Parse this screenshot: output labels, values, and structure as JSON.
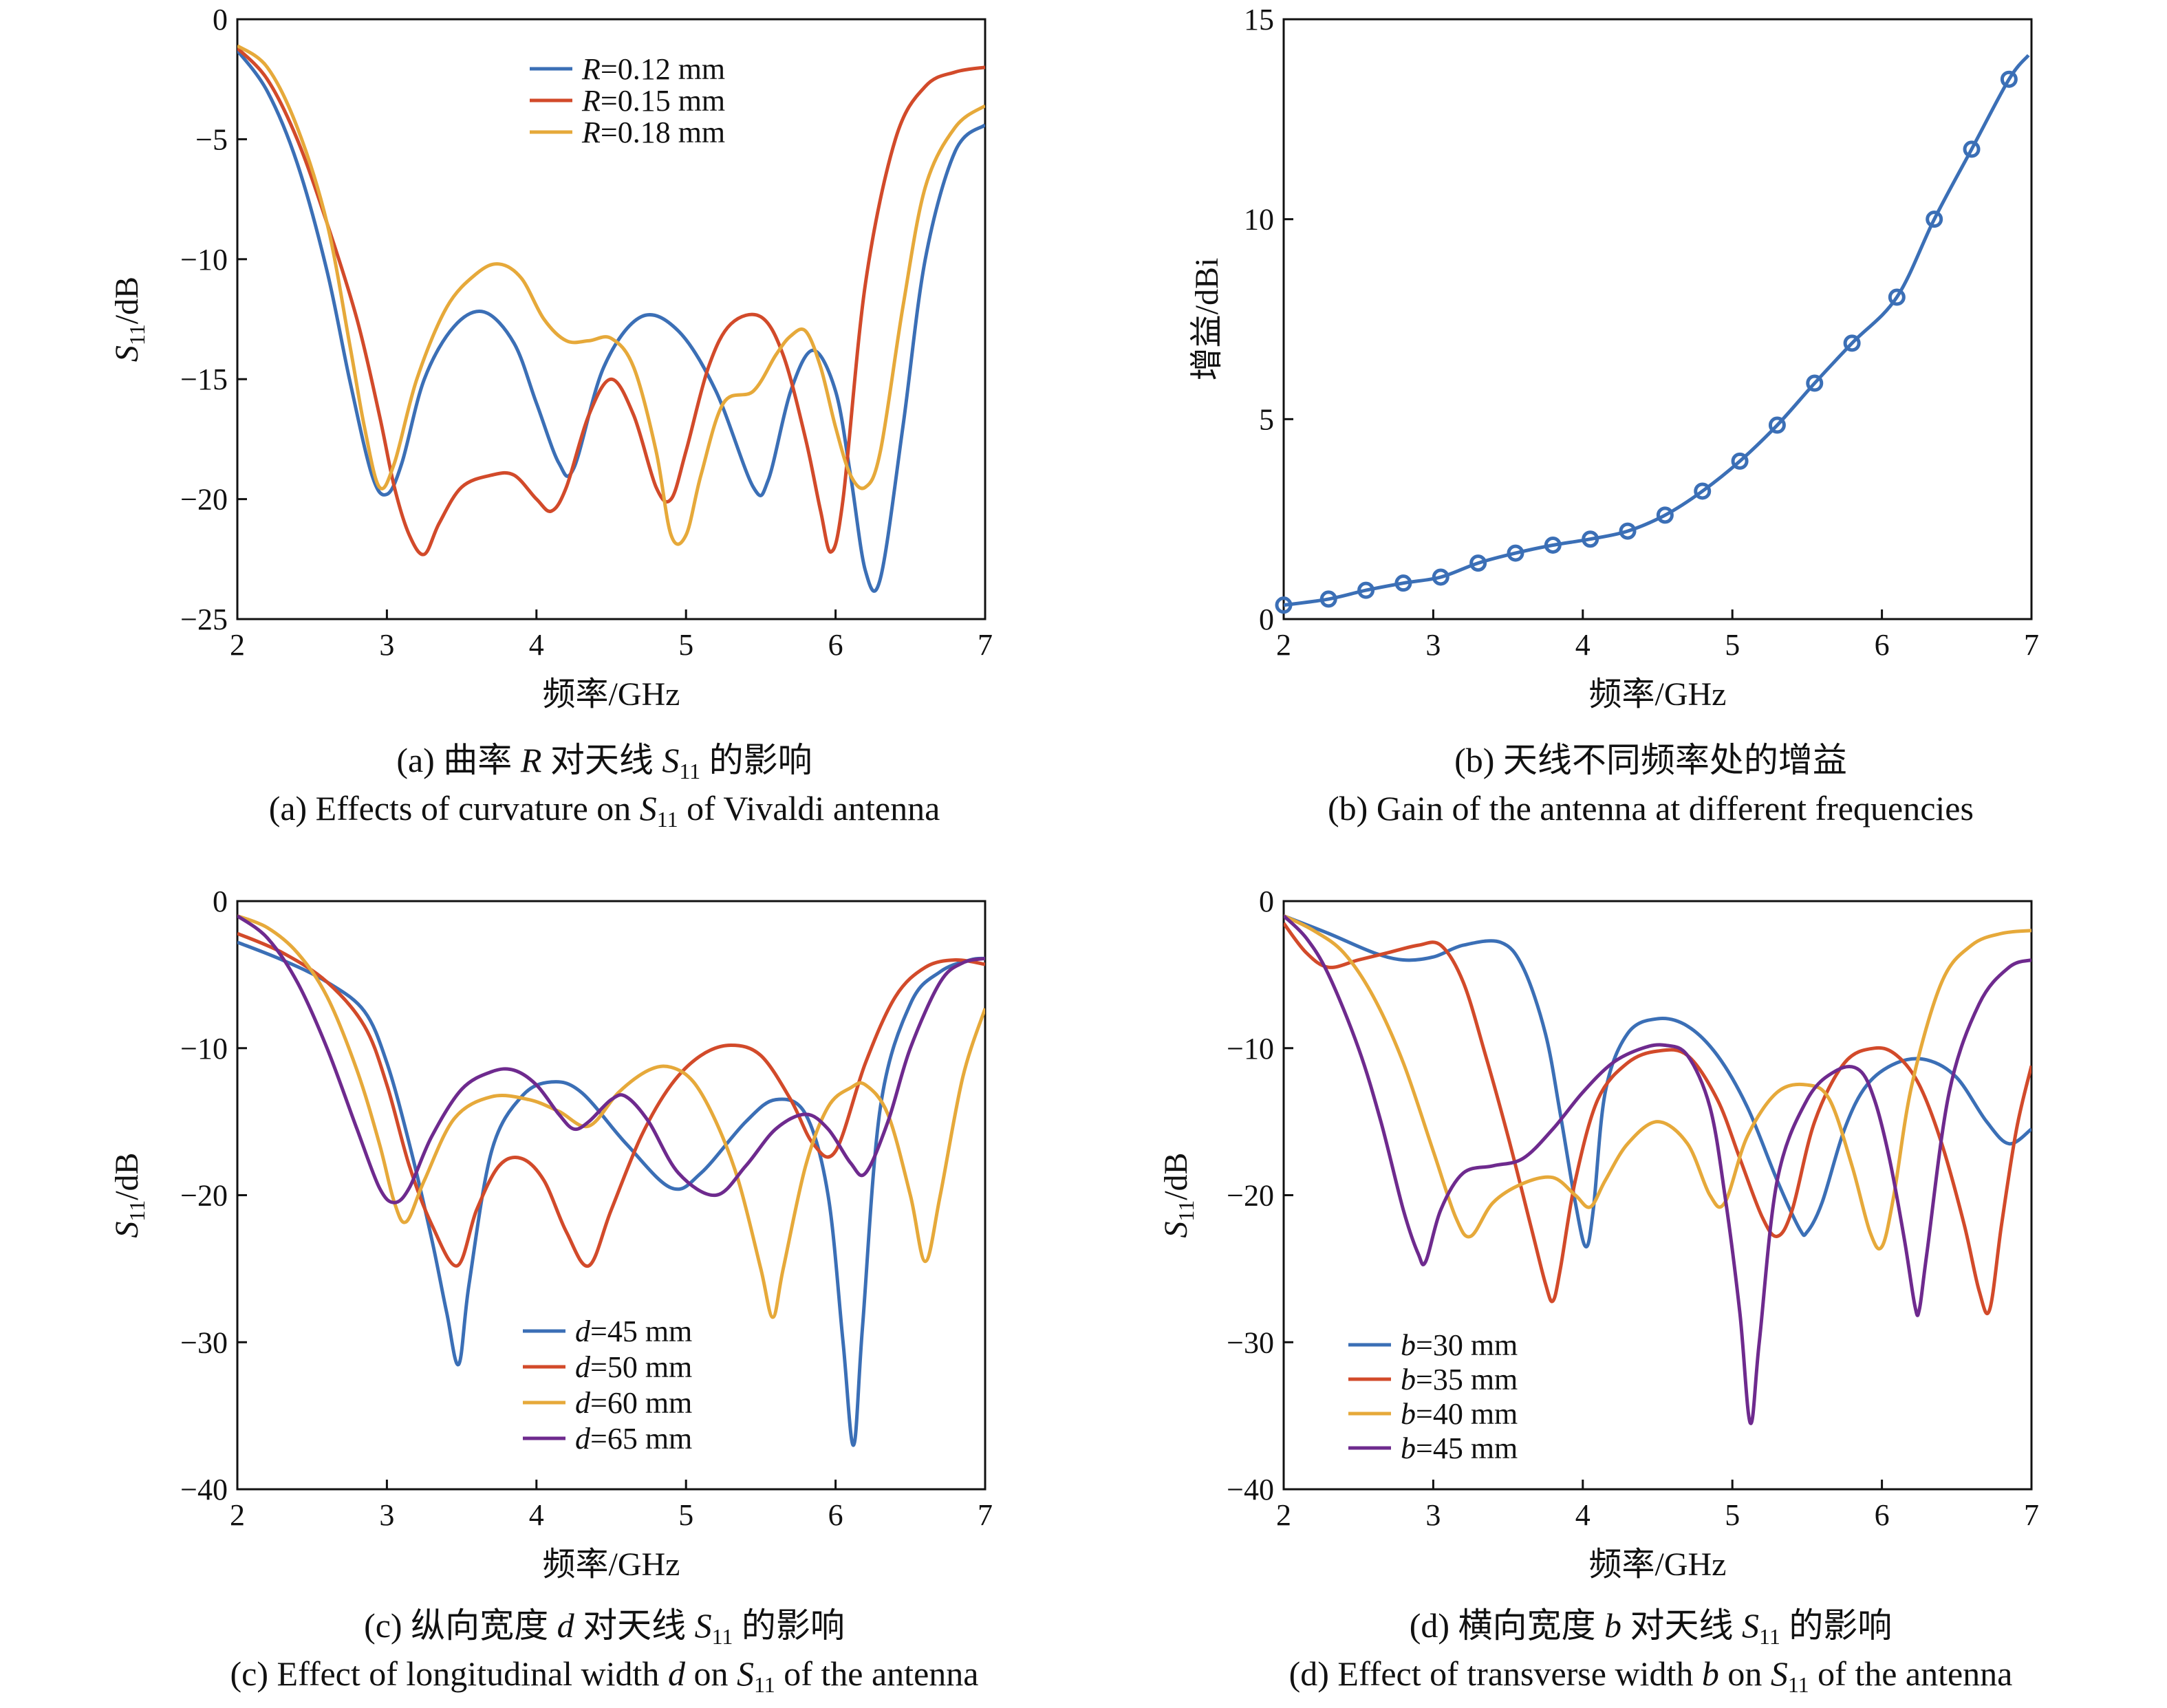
{
  "colors": {
    "blue": "#3b6fb6",
    "red": "#d24a2a",
    "orange": "#e6a93a",
    "purple": "#6e2a8e",
    "axis": "#111111"
  },
  "chart_data": [
    {
      "id": "a",
      "type": "line",
      "xlabel": "频率/GHz",
      "ylabel_main": "S",
      "ylabel_sub": "11",
      "ylabel_tail": "/dB",
      "xlim": [
        2,
        7
      ],
      "ylim": [
        -25,
        0
      ],
      "xticks": [
        2,
        3,
        4,
        5,
        6,
        7
      ],
      "yticks": [
        0,
        -5,
        -10,
        -15,
        -20,
        -25
      ],
      "yticklabels": [
        "0",
        "−5",
        "−10",
        "−15",
        "−20",
        "−25"
      ],
      "caption_cn_prefix": "(a) 曲率 ",
      "caption_cn_var": "R",
      "caption_cn_mid": " 对天线 ",
      "caption_cn_sym": "S",
      "caption_cn_sub": "11",
      "caption_cn_suffix": " 的影响",
      "caption_en_prefix": "(a) Effects of curvature on ",
      "caption_en_sym": "S",
      "caption_en_sub": "11",
      "caption_en_suffix": " of Vivaldi antenna",
      "series": [
        {
          "var": "R",
          "value": "=0.12 mm",
          "color": "#3b6fb6",
          "x": [
            2.0,
            2.2,
            2.4,
            2.6,
            2.75,
            2.9,
            3.0,
            3.1,
            3.25,
            3.45,
            3.65,
            3.85,
            4.0,
            4.15,
            4.25,
            4.45,
            4.7,
            4.95,
            5.2,
            5.45,
            5.55,
            5.7,
            5.85,
            6.0,
            6.1,
            6.2,
            6.3,
            6.45,
            6.6,
            6.8,
            7.0
          ],
          "y": [
            -1.3,
            -3.0,
            -6.0,
            -10.5,
            -15.0,
            -19.0,
            -19.8,
            -18.5,
            -15.0,
            -12.8,
            -12.2,
            -13.5,
            -16.0,
            -18.5,
            -18.7,
            -14.5,
            -12.4,
            -13.0,
            -15.5,
            -19.5,
            -19.2,
            -15.5,
            -13.8,
            -15.5,
            -19.0,
            -23.0,
            -23.3,
            -17.0,
            -10.0,
            -5.5,
            -4.4
          ]
        },
        {
          "var": "R",
          "value": "=0.15 mm",
          "color": "#d24a2a",
          "x": [
            2.0,
            2.2,
            2.4,
            2.6,
            2.8,
            2.95,
            3.05,
            3.15,
            3.25,
            3.35,
            3.5,
            3.7,
            3.85,
            4.0,
            4.1,
            4.2,
            4.35,
            4.5,
            4.65,
            4.8,
            4.9,
            5.0,
            5.15,
            5.3,
            5.5,
            5.65,
            5.8,
            5.9,
            5.97,
            6.05,
            6.2,
            6.4,
            6.6,
            6.8,
            7.0
          ],
          "y": [
            -1.2,
            -2.5,
            -5.0,
            -8.5,
            -12.5,
            -16.5,
            -19.5,
            -21.5,
            -22.3,
            -21.0,
            -19.5,
            -19.0,
            -19.0,
            -20.0,
            -20.5,
            -19.5,
            -16.5,
            -15.0,
            -16.5,
            -19.5,
            -20.0,
            -18.0,
            -14.5,
            -12.7,
            -12.4,
            -14.0,
            -17.5,
            -20.5,
            -22.2,
            -20.0,
            -11.0,
            -5.0,
            -2.8,
            -2.2,
            -2.0
          ]
        },
        {
          "var": "R",
          "value": "=0.18 mm",
          "color": "#e6a93a",
          "x": [
            2.0,
            2.2,
            2.4,
            2.6,
            2.75,
            2.85,
            2.95,
            3.05,
            3.2,
            3.4,
            3.6,
            3.75,
            3.9,
            4.05,
            4.2,
            4.35,
            4.5,
            4.65,
            4.8,
            4.9,
            5.0,
            5.1,
            5.25,
            5.45,
            5.6,
            5.7,
            5.8,
            5.9,
            6.0,
            6.1,
            6.2,
            6.3,
            6.45,
            6.6,
            6.8,
            7.0
          ],
          "y": [
            -1.1,
            -2.0,
            -4.5,
            -8.5,
            -13.5,
            -17.0,
            -19.5,
            -18.5,
            -15.0,
            -12.0,
            -10.6,
            -10.2,
            -10.8,
            -12.5,
            -13.4,
            -13.4,
            -13.3,
            -14.5,
            -18.0,
            -21.5,
            -21.5,
            -19.0,
            -16.0,
            -15.5,
            -14.0,
            -13.2,
            -13.0,
            -14.5,
            -17.0,
            -19.0,
            -19.5,
            -18.0,
            -12.0,
            -7.0,
            -4.5,
            -3.6
          ]
        }
      ]
    },
    {
      "id": "b",
      "type": "line",
      "xlabel": "频率/GHz",
      "ylabel": "增益/dBi",
      "xlim": [
        2,
        7
      ],
      "ylim": [
        0,
        15
      ],
      "xticks": [
        2,
        3,
        4,
        5,
        6,
        7
      ],
      "yticks": [
        0,
        5,
        10,
        15
      ],
      "yticklabels": [
        "0",
        "5",
        "10",
        "15"
      ],
      "caption_cn": "(b) 天线不同频率处的增益",
      "caption_en": "(b) Gain of the antenna at different frequencies",
      "series": [
        {
          "color": "#3b6fb6",
          "x": [
            2.0,
            2.3,
            2.55,
            2.8,
            3.05,
            3.3,
            3.55,
            3.8,
            4.05,
            4.3,
            4.55,
            4.8,
            5.05,
            5.3,
            5.55,
            5.8,
            6.1,
            6.35,
            6.6,
            6.85,
            6.98
          ],
          "y": [
            0.35,
            0.5,
            0.72,
            0.9,
            1.05,
            1.4,
            1.65,
            1.85,
            2.0,
            2.2,
            2.6,
            3.2,
            3.95,
            4.85,
            5.9,
            6.9,
            8.05,
            10.0,
            11.75,
            13.5,
            14.1
          ],
          "markers": [
            0,
            1,
            2,
            3,
            4,
            5,
            6,
            7,
            8,
            9,
            10,
            11,
            12,
            13,
            14,
            15,
            16,
            17,
            18,
            19
          ]
        }
      ]
    },
    {
      "id": "c",
      "type": "line",
      "xlabel": "频率/GHz",
      "ylabel_main": "S",
      "ylabel_sub": "11",
      "ylabel_tail": "/dB",
      "xlim": [
        2,
        7
      ],
      "ylim": [
        -40,
        0
      ],
      "xticks": [
        2,
        3,
        4,
        5,
        6,
        7
      ],
      "yticks": [
        0,
        -10,
        -20,
        -30,
        -40
      ],
      "yticklabels": [
        "0",
        "−10",
        "−20",
        "−30",
        "−40"
      ],
      "caption_cn_prefix": "(c) 纵向宽度 ",
      "caption_cn_var": "d",
      "caption_cn_mid": " 对天线 ",
      "caption_cn_sym": "S",
      "caption_cn_sub": "11",
      "caption_cn_suffix": " 的影响",
      "caption_en_prefix": "(c) Effect of longitudinal width ",
      "caption_en_var": "d",
      "caption_en_mid": " on ",
      "caption_en_sym": "S",
      "caption_en_sub": "11",
      "caption_en_suffix": " of the antenna",
      "series": [
        {
          "var": "d",
          "value": "=45 mm",
          "color": "#3b6fb6",
          "x": [
            2.0,
            2.3,
            2.6,
            2.85,
            3.0,
            3.15,
            3.3,
            3.4,
            3.48,
            3.55,
            3.7,
            3.9,
            4.1,
            4.3,
            4.6,
            4.9,
            5.1,
            5.4,
            5.6,
            5.8,
            5.95,
            6.05,
            6.12,
            6.18,
            6.3,
            6.5,
            6.7,
            6.9,
            7.0
          ],
          "y": [
            -2.8,
            -4.0,
            -5.5,
            -7.5,
            -11.0,
            -16.5,
            -23.0,
            -28.0,
            -31.5,
            -26.0,
            -17.0,
            -13.3,
            -12.3,
            -13.0,
            -16.5,
            -19.5,
            -18.5,
            -15.0,
            -13.5,
            -14.5,
            -20.0,
            -30.0,
            -37.0,
            -29.0,
            -14.0,
            -7.0,
            -4.8,
            -4.0,
            -3.9
          ]
        },
        {
          "var": "d",
          "value": "=50 mm",
          "color": "#d24a2a",
          "x": [
            2.0,
            2.3,
            2.6,
            2.85,
            3.0,
            3.15,
            3.3,
            3.47,
            3.6,
            3.75,
            3.9,
            4.05,
            4.2,
            4.35,
            4.5,
            4.7,
            4.9,
            5.1,
            5.3,
            5.5,
            5.7,
            5.85,
            6.0,
            6.2,
            6.4,
            6.6,
            6.8,
            7.0
          ],
          "y": [
            -2.2,
            -3.5,
            -5.5,
            -8.5,
            -12.5,
            -18.0,
            -22.0,
            -24.8,
            -21.0,
            -18.0,
            -17.5,
            -19.0,
            -22.5,
            -24.8,
            -21.0,
            -16.0,
            -12.5,
            -10.5,
            -9.8,
            -10.5,
            -13.5,
            -16.5,
            -17.0,
            -11.0,
            -6.5,
            -4.5,
            -4.0,
            -4.3
          ]
        },
        {
          "var": "d",
          "value": "=60 mm",
          "color": "#e6a93a",
          "x": [
            2.0,
            2.2,
            2.4,
            2.6,
            2.8,
            2.95,
            3.05,
            3.13,
            3.25,
            3.45,
            3.7,
            3.95,
            4.15,
            4.35,
            4.55,
            4.75,
            4.9,
            5.05,
            5.2,
            5.35,
            5.5,
            5.58,
            5.65,
            5.8,
            5.95,
            6.1,
            6.2,
            6.35,
            6.5,
            6.6,
            6.7,
            6.85,
            7.0
          ],
          "y": [
            -1.0,
            -1.8,
            -3.5,
            -6.5,
            -11.5,
            -16.5,
            -20.5,
            -21.8,
            -19.0,
            -14.8,
            -13.3,
            -13.5,
            -14.3,
            -15.3,
            -13.0,
            -11.5,
            -11.3,
            -12.3,
            -15.0,
            -19.0,
            -25.0,
            -28.3,
            -25.0,
            -18.0,
            -14.0,
            -12.7,
            -12.5,
            -14.5,
            -20.0,
            -24.5,
            -20.0,
            -12.0,
            -7.3
          ]
        },
        {
          "var": "d",
          "value": "=65 mm",
          "color": "#6e2a8e",
          "x": [
            2.0,
            2.2,
            2.4,
            2.6,
            2.8,
            2.95,
            3.05,
            3.15,
            3.3,
            3.5,
            3.7,
            3.85,
            4.0,
            4.15,
            4.25,
            4.35,
            4.5,
            4.6,
            4.75,
            4.95,
            5.2,
            5.4,
            5.6,
            5.8,
            5.95,
            6.1,
            6.2,
            6.35,
            6.5,
            6.7,
            6.85,
            7.0
          ],
          "y": [
            -1.0,
            -2.5,
            -5.5,
            -10.0,
            -15.5,
            -19.5,
            -20.5,
            -19.5,
            -16.0,
            -12.8,
            -11.6,
            -11.5,
            -12.5,
            -14.5,
            -15.5,
            -15.0,
            -13.5,
            -13.3,
            -15.0,
            -18.5,
            -20.0,
            -18.0,
            -15.5,
            -14.5,
            -15.5,
            -17.8,
            -18.5,
            -15.0,
            -10.0,
            -5.5,
            -4.2,
            -3.9
          ]
        }
      ]
    },
    {
      "id": "d",
      "type": "line",
      "xlabel": "频率/GHz",
      "ylabel_main": "S",
      "ylabel_sub": "11",
      "ylabel_tail": "/dB",
      "xlim": [
        2,
        7
      ],
      "ylim": [
        -40,
        0
      ],
      "xticks": [
        2,
        3,
        4,
        5,
        6,
        7
      ],
      "yticks": [
        0,
        -10,
        -20,
        -30,
        -40
      ],
      "yticklabels": [
        "0",
        "−10",
        "−20",
        "−30",
        "−40"
      ],
      "caption_cn_prefix": "(d) 横向宽度 ",
      "caption_cn_var": "b",
      "caption_cn_mid": " 对天线 ",
      "caption_cn_sym": "S",
      "caption_cn_sub": "11",
      "caption_cn_suffix": " 的影响",
      "caption_en_prefix": "(d) Effect of transverse width ",
      "caption_en_var": "b",
      "caption_en_mid": " on ",
      "caption_en_sym": "S",
      "caption_en_sub": "11",
      "caption_en_suffix": " of the antenna",
      "series": [
        {
          "var": "b",
          "value": "=30 mm",
          "color": "#3b6fb6",
          "x": [
            2.0,
            2.3,
            2.6,
            2.8,
            3.0,
            3.2,
            3.45,
            3.6,
            3.75,
            3.85,
            3.95,
            4.02,
            4.07,
            4.15,
            4.3,
            4.5,
            4.7,
            4.9,
            5.1,
            5.3,
            5.45,
            5.5,
            5.6,
            5.75,
            5.9,
            6.1,
            6.3,
            6.5,
            6.7,
            6.85,
            7.0
          ],
          "y": [
            -1.0,
            -2.2,
            -3.5,
            -4.0,
            -3.8,
            -3.0,
            -2.8,
            -4.5,
            -9.0,
            -14.5,
            -20.5,
            -23.5,
            -21.0,
            -13.0,
            -9.0,
            -8.0,
            -8.5,
            -10.5,
            -14.0,
            -19.0,
            -22.3,
            -22.5,
            -20.5,
            -15.5,
            -12.5,
            -11.0,
            -10.8,
            -12.0,
            -15.0,
            -16.5,
            -15.5
          ]
        },
        {
          "var": "b",
          "value": "=35 mm",
          "color": "#d24a2a",
          "x": [
            2.0,
            2.15,
            2.3,
            2.5,
            2.7,
            2.9,
            3.05,
            3.2,
            3.35,
            3.5,
            3.65,
            3.75,
            3.8,
            3.85,
            3.95,
            4.1,
            4.3,
            4.5,
            4.7,
            4.9,
            5.05,
            5.2,
            5.3,
            5.4,
            5.55,
            5.75,
            5.95,
            6.1,
            6.25,
            6.4,
            6.55,
            6.65,
            6.72,
            6.8,
            6.9,
            7.0
          ],
          "y": [
            -1.5,
            -3.5,
            -4.5,
            -4.0,
            -3.5,
            -3.0,
            -3.0,
            -5.5,
            -10.5,
            -16.0,
            -22.0,
            -26.0,
            -27.2,
            -25.0,
            -19.0,
            -13.5,
            -11.0,
            -10.2,
            -10.5,
            -13.5,
            -17.5,
            -21.5,
            -22.8,
            -21.0,
            -15.0,
            -11.0,
            -10.0,
            -10.5,
            -12.5,
            -16.5,
            -22.0,
            -26.5,
            -27.8,
            -22.0,
            -15.5,
            -11.2
          ]
        },
        {
          "var": "b",
          "value": "=40 mm",
          "color": "#e6a93a",
          "x": [
            2.0,
            2.2,
            2.4,
            2.6,
            2.8,
            3.0,
            3.15,
            3.25,
            3.4,
            3.6,
            3.8,
            3.95,
            4.05,
            4.15,
            4.3,
            4.5,
            4.7,
            4.85,
            4.95,
            5.1,
            5.3,
            5.5,
            5.65,
            5.8,
            5.92,
            6.0,
            6.08,
            6.2,
            6.4,
            6.6,
            6.8,
            7.0
          ],
          "y": [
            -1.0,
            -2.0,
            -3.5,
            -6.5,
            -11.0,
            -17.0,
            -21.5,
            -22.8,
            -20.5,
            -19.2,
            -18.8,
            -20.0,
            -20.8,
            -19.0,
            -16.5,
            -15.0,
            -16.5,
            -20.0,
            -20.5,
            -16.0,
            -13.0,
            -12.5,
            -13.5,
            -18.0,
            -22.5,
            -23.5,
            -20.0,
            -12.5,
            -5.5,
            -3.0,
            -2.2,
            -2.0
          ]
        },
        {
          "var": "b",
          "value": "=45 mm",
          "color": "#6e2a8e",
          "x": [
            2.0,
            2.15,
            2.3,
            2.5,
            2.65,
            2.8,
            2.9,
            2.95,
            3.05,
            3.2,
            3.4,
            3.6,
            3.8,
            4.0,
            4.2,
            4.4,
            4.55,
            4.7,
            4.85,
            4.95,
            5.05,
            5.12,
            5.18,
            5.3,
            5.5,
            5.7,
            5.85,
            5.95,
            6.05,
            6.15,
            6.22,
            6.25,
            6.3,
            6.45,
            6.65,
            6.85,
            7.0
          ],
          "y": [
            -1.0,
            -2.5,
            -5.0,
            -10.0,
            -15.0,
            -21.0,
            -24.0,
            -24.5,
            -21.0,
            -18.5,
            -18.0,
            -17.5,
            -15.5,
            -13.0,
            -11.0,
            -10.0,
            -9.8,
            -10.5,
            -14.0,
            -20.0,
            -28.0,
            -35.5,
            -30.0,
            -19.0,
            -13.5,
            -11.5,
            -11.5,
            -13.5,
            -17.5,
            -23.0,
            -27.5,
            -27.8,
            -24.0,
            -13.0,
            -7.0,
            -4.5,
            -4.0
          ]
        }
      ]
    }
  ]
}
